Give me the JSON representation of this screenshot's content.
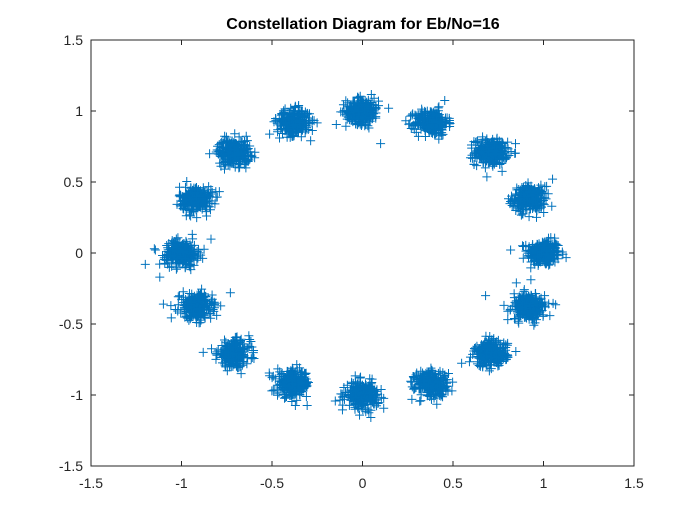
{
  "chart_data": {
    "type": "scatter",
    "title": "Constellation Diagram for Eb/No=16",
    "xlabel": "",
    "ylabel": "",
    "xlim": [
      -1.5,
      1.5
    ],
    "ylim": [
      -1.5,
      1.5
    ],
    "xticks": [
      -1.5,
      -1,
      -0.5,
      0,
      0.5,
      1,
      1.5
    ],
    "yticks": [
      -1.5,
      -1,
      -0.5,
      0,
      0.5,
      1,
      1.5
    ],
    "xtick_labels": [
      "-1.5",
      "-1",
      "-0.5",
      "0",
      "0.5",
      "1",
      "1.5"
    ],
    "ytick_labels": [
      "-1.5",
      "-1",
      "-0.5",
      "0",
      "0.5",
      "1",
      "1.5"
    ],
    "grid": false,
    "marker": "+",
    "marker_color": "#0072BD",
    "series": [
      {
        "cluster_centers": [
          {
            "x": 1.0,
            "y": 0.0
          },
          {
            "x": 0.92,
            "y": 0.38
          },
          {
            "x": 0.71,
            "y": 0.71
          },
          {
            "x": 0.38,
            "y": 0.92
          },
          {
            "x": 0.0,
            "y": 1.0
          },
          {
            "x": -0.38,
            "y": 0.92
          },
          {
            "x": -0.71,
            "y": 0.71
          },
          {
            "x": -0.92,
            "y": 0.38
          },
          {
            "x": -1.0,
            "y": 0.0
          },
          {
            "x": -0.92,
            "y": -0.38
          },
          {
            "x": -0.71,
            "y": -0.71
          },
          {
            "x": -0.38,
            "y": -0.92
          },
          {
            "x": 0.0,
            "y": -1.0
          },
          {
            "x": 0.38,
            "y": -0.92
          },
          {
            "x": 0.71,
            "y": -0.71
          },
          {
            "x": 0.92,
            "y": -0.38
          }
        ],
        "cluster_spread": 0.045,
        "points_per_cluster": 260
      }
    ],
    "outliers": [
      {
        "x": -1.2,
        "y": -0.08
      },
      {
        "x": -1.12,
        "y": -0.17
      },
      {
        "x": -1.15,
        "y": 0.03
      },
      {
        "x": -1.1,
        "y": -0.36
      },
      {
        "x": -0.73,
        "y": -0.28
      },
      {
        "x": 0.1,
        "y": 0.77
      },
      {
        "x": 0.68,
        "y": -0.3
      },
      {
        "x": 0.85,
        "y": -0.21
      },
      {
        "x": -0.88,
        "y": -0.7
      },
      {
        "x": 1.05,
        "y": 0.52
      }
    ]
  }
}
